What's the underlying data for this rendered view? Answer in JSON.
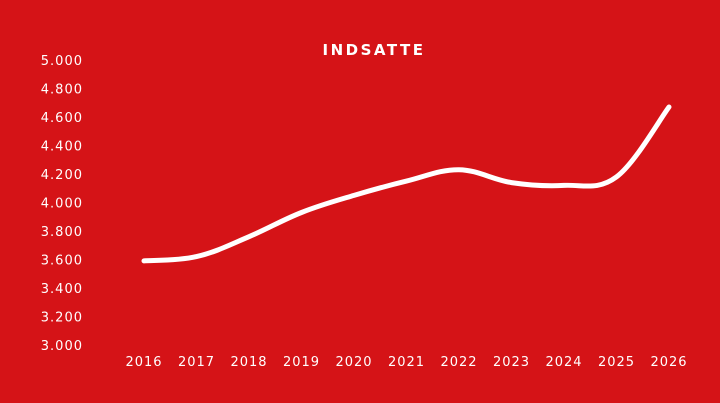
{
  "colors": {
    "background": "#d51317",
    "foreground": "#ffffff"
  },
  "chart_data": {
    "type": "line",
    "title": "INDSATTE",
    "xlabel": "",
    "ylabel": "",
    "ylim": [
      3000,
      5000
    ],
    "grid": false,
    "legend": "none",
    "x": [
      "2016",
      "2017",
      "2018",
      "2019",
      "2020",
      "2021",
      "2022",
      "2023",
      "2024",
      "2025",
      "2026"
    ],
    "y_tick_values": [
      3000,
      3200,
      3400,
      3600,
      3800,
      4000,
      4200,
      4400,
      4600,
      4800,
      5000
    ],
    "y_tick_labels": [
      "3.000",
      "3.200",
      "3.400",
      "3.600",
      "3.800",
      "4.000",
      "4.200",
      "4.400",
      "4.600",
      "4.800",
      "5.000"
    ],
    "series": [
      {
        "values": [
          3590,
          3620,
          3760,
          3930,
          4050,
          4150,
          4230,
          4140,
          4120,
          4180,
          4670
        ]
      }
    ]
  }
}
